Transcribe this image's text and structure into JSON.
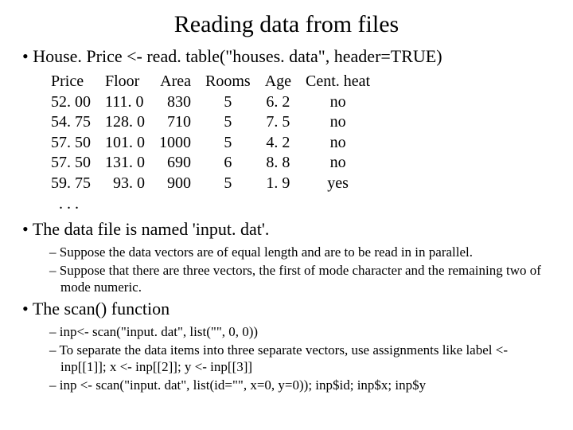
{
  "title": "Reading data from files",
  "bullets": {
    "b1": "House. Price <- read. table(\"houses. data\", header=TRUE)",
    "b2": "The data file is named 'input. dat'.",
    "b3": "The scan() function"
  },
  "table": {
    "headers": [
      "Price",
      "Floor",
      "Area",
      "Rooms",
      "Age",
      "Cent. heat"
    ],
    "rows": [
      [
        "52. 00",
        "111. 0",
        "830",
        "5",
        "6. 2",
        "no"
      ],
      [
        "54. 75",
        "128. 0",
        "710",
        "5",
        "7. 5",
        "no"
      ],
      [
        "57. 50",
        "101. 0",
        "1000",
        "5",
        "4. 2",
        "no"
      ],
      [
        "57. 50",
        "131. 0",
        "690",
        "6",
        "8. 8",
        "no"
      ],
      [
        "59. 75",
        "93. 0",
        "900",
        "5",
        "1. 9",
        "yes"
      ]
    ],
    "ellipsis": ". . ."
  },
  "subs1": {
    "s1": "Suppose the data vectors are of equal length and are to be read in in parallel.",
    "s2": "Suppose that there are three vectors, the first of mode character and the remaining two of mode numeric."
  },
  "subs2": {
    "s1": "inp<- scan(\"input. dat\", list(\"\", 0, 0))",
    "s2": "To separate the data items into three separate vectors, use assignments like label <- inp[[1]]; x <- inp[[2]]; y <- inp[[3]]",
    "s3": "inp <- scan(\"input. dat\", list(id=\"\", x=0, y=0));  inp$id; inp$x; inp$y"
  }
}
